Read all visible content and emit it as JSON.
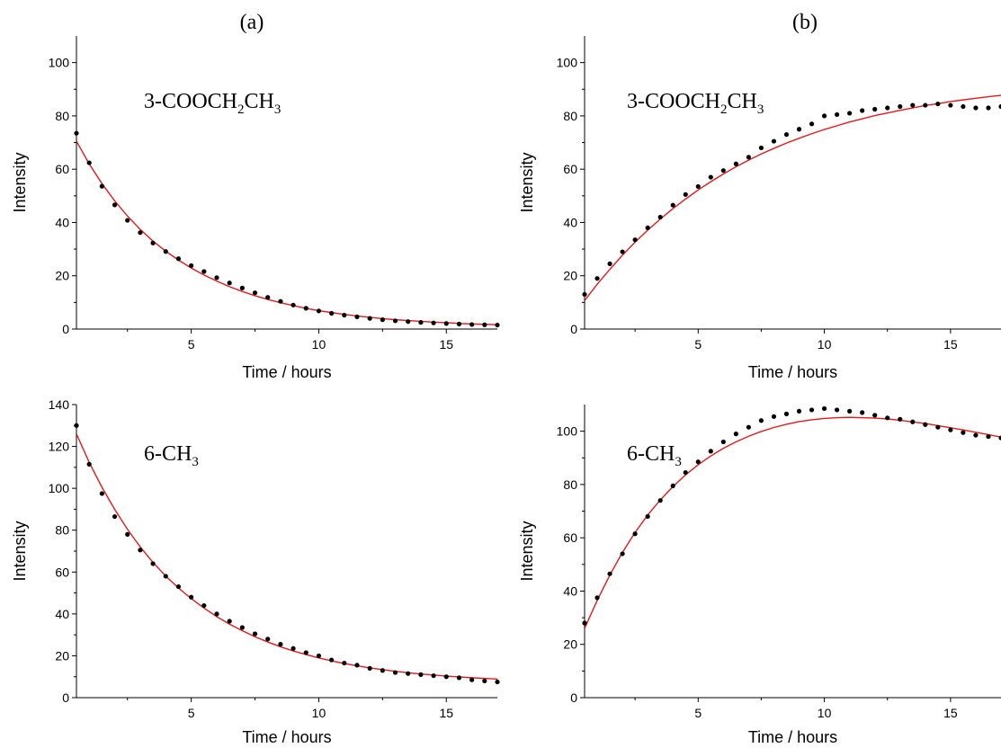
{
  "panel_labels": {
    "a": "(a)",
    "b": "(b)"
  },
  "colors": {
    "fit_line": "#e31a1c",
    "points": "#000000",
    "axes": "#000000"
  },
  "chart_data": [
    {
      "type": "scatter",
      "id": "a-top",
      "annotation": {
        "base": "3-COOCH",
        "sub1": "2",
        "mid": "CH",
        "sub2": "3"
      },
      "xlabel": "Time / hours",
      "ylabel": "Intensity",
      "xlim": [
        0.5,
        17
      ],
      "ylim": [
        0,
        110
      ],
      "xticks": [
        5,
        10,
        15
      ],
      "yticks": [
        0,
        20,
        40,
        60,
        80,
        100
      ],
      "grid": false,
      "series": [
        {
          "kind": "points",
          "x": [
            0.5,
            1,
            1.5,
            2,
            2.5,
            3,
            3.5,
            4,
            4.5,
            5,
            5.5,
            6,
            6.5,
            7,
            7.5,
            8,
            8.5,
            9,
            9.5,
            10,
            10.5,
            11,
            11.5,
            12,
            12.5,
            13,
            13.5,
            14,
            14.5,
            15,
            15.5,
            16,
            16.5,
            17
          ],
          "y": [
            73.5,
            62.4,
            53.6,
            46.6,
            40.8,
            36.2,
            32.3,
            29.1,
            26.4,
            23.8,
            21.6,
            19.3,
            17.3,
            15.4,
            13.6,
            11.9,
            10.4,
            9.0,
            7.8,
            6.8,
            5.9,
            5.2,
            4.6,
            4.0,
            3.5,
            3.1,
            2.8,
            2.5,
            2.3,
            2.1,
            1.9,
            1.7,
            1.6,
            1.5
          ]
        },
        {
          "kind": "fit",
          "x": [
            0.5,
            1,
            1.5,
            2,
            2.5,
            3,
            3.5,
            4,
            4.5,
            5,
            5.5,
            6,
            6.5,
            7,
            7.5,
            8,
            8.5,
            9,
            9.5,
            10,
            10.5,
            11,
            11.5,
            12,
            12.5,
            13,
            13.5,
            14,
            14.5,
            15,
            15.5,
            16,
            16.5,
            17
          ],
          "y": [
            70.5,
            62.0,
            54.6,
            48.1,
            42.4,
            37.4,
            33.0,
            29.2,
            25.9,
            22.9,
            20.3,
            18.0,
            15.9,
            14.1,
            12.5,
            11.1,
            9.9,
            8.8,
            7.8,
            6.9,
            6.2,
            5.5,
            4.9,
            4.4,
            3.9,
            3.5,
            3.2,
            2.9,
            2.6,
            2.4,
            2.1,
            1.9,
            1.8,
            1.6
          ]
        }
      ]
    },
    {
      "type": "scatter",
      "id": "b-top",
      "annotation": {
        "base": "3-COOCH",
        "sub1": "2",
        "mid": "CH",
        "sub2": "3"
      },
      "xlabel": "Time / hours",
      "ylabel": "Intensity",
      "xlim": [
        0.5,
        17
      ],
      "ylim": [
        0,
        110
      ],
      "xticks": [
        5,
        10,
        15
      ],
      "yticks": [
        0,
        20,
        40,
        60,
        80,
        100
      ],
      "grid": false,
      "series": [
        {
          "kind": "points",
          "x": [
            0.5,
            1,
            1.5,
            2,
            2.5,
            3,
            3.5,
            4,
            4.5,
            5,
            5.5,
            6,
            6.5,
            7,
            7.5,
            8,
            8.5,
            9,
            9.5,
            10,
            10.5,
            11,
            11.5,
            12,
            12.5,
            13,
            13.5,
            14,
            14.5,
            15,
            15.5,
            16,
            16.5,
            17
          ],
          "y": [
            13,
            19,
            24.5,
            29,
            33.5,
            38,
            42,
            46.5,
            50.5,
            53.5,
            57,
            59.5,
            62,
            64.5,
            68,
            70.5,
            73,
            75,
            77,
            80,
            80.5,
            81,
            82,
            82.5,
            83,
            83.5,
            84,
            84,
            84.5,
            84,
            83.5,
            83,
            83,
            83.5
          ]
        },
        {
          "kind": "fit",
          "x": [
            0.5,
            1,
            1.5,
            2,
            2.5,
            3,
            3.5,
            4,
            4.5,
            5,
            5.5,
            6,
            6.5,
            7,
            7.5,
            8,
            8.5,
            9,
            9.5,
            10,
            10.5,
            11,
            11.5,
            12,
            12.5,
            13,
            13.5,
            14,
            14.5,
            15,
            15.5,
            16,
            16.5,
            17
          ],
          "y": [
            10.7,
            16.8,
            22.4,
            27.7,
            32.6,
            37.1,
            41.3,
            45.2,
            48.8,
            52.2,
            55.3,
            58.2,
            60.9,
            63.4,
            65.7,
            67.8,
            69.8,
            71.6,
            73.3,
            74.9,
            76.3,
            77.7,
            78.9,
            80.1,
            81.1,
            82.1,
            83.0,
            83.9,
            84.6,
            85.4,
            86.0,
            86.6,
            87.2,
            87.7
          ]
        }
      ]
    },
    {
      "type": "scatter",
      "id": "a-bottom",
      "annotation": {
        "base": "6-CH",
        "sub1": "3",
        "mid": "",
        "sub2": ""
      },
      "xlabel": "Time / hours",
      "ylabel": "Intensity",
      "xlim": [
        0.5,
        17
      ],
      "ylim": [
        0,
        140
      ],
      "xticks": [
        5,
        10,
        15
      ],
      "yticks": [
        0,
        20,
        40,
        60,
        80,
        100,
        120,
        140
      ],
      "grid": false,
      "series": [
        {
          "kind": "points",
          "x": [
            0.5,
            1,
            1.5,
            2,
            2.5,
            3,
            3.5,
            4,
            4.5,
            5,
            5.5,
            6,
            6.5,
            7,
            7.5,
            8,
            8.5,
            9,
            9.5,
            10,
            10.5,
            11,
            11.5,
            12,
            12.5,
            13,
            13.5,
            14,
            14.5,
            15,
            15.5,
            16,
            16.5,
            17
          ],
          "y": [
            130,
            111.5,
            97.5,
            86.5,
            78,
            70.5,
            64,
            58,
            53,
            48,
            44,
            40,
            36.5,
            33.5,
            30.5,
            28,
            25.5,
            23.5,
            21.5,
            20,
            18,
            16.5,
            15.5,
            14,
            13,
            12,
            11.5,
            11,
            10.5,
            10,
            9.5,
            8.5,
            8,
            7.5
          ]
        },
        {
          "kind": "fit",
          "x": [
            0.5,
            1,
            1.5,
            2,
            2.5,
            3,
            3.5,
            4,
            4.5,
            5,
            5.5,
            6,
            6.5,
            7,
            7.5,
            8,
            8.5,
            9,
            9.5,
            10,
            10.5,
            11,
            11.5,
            12,
            12.5,
            13,
            13.5,
            14,
            14.5,
            15,
            15.5,
            16,
            16.5,
            17
          ],
          "y": [
            126,
            112.4,
            100.5,
            89.9,
            80.4,
            72.0,
            64.6,
            58.1,
            52.4,
            47.3,
            42.8,
            38.7,
            35.1,
            32.0,
            29.1,
            26.6,
            24.3,
            22.3,
            20.6,
            19.0,
            17.6,
            16.3,
            15.2,
            14.2,
            13.4,
            12.6,
            11.9,
            11.3,
            10.8,
            10.3,
            9.9,
            9.5,
            9.2,
            8.9
          ]
        }
      ]
    },
    {
      "type": "scatter",
      "id": "b-bottom",
      "annotation": {
        "base": "6-CH",
        "sub1": "3",
        "mid": "",
        "sub2": ""
      },
      "xlabel": "Time / hours",
      "ylabel": "Intensity",
      "xlim": [
        0.5,
        17
      ],
      "ylim": [
        0,
        110
      ],
      "xticks": [
        5,
        10,
        15
      ],
      "yticks": [
        0,
        20,
        40,
        60,
        80,
        100
      ],
      "grid": false,
      "series": [
        {
          "kind": "points",
          "x": [
            0.5,
            1,
            1.5,
            2,
            2.5,
            3,
            3.5,
            4,
            4.5,
            5,
            5.5,
            6,
            6.5,
            7,
            7.5,
            8,
            8.5,
            9,
            9.5,
            10,
            10.5,
            11,
            11.5,
            12,
            12.5,
            13,
            13.5,
            14,
            14.5,
            15,
            15.5,
            16,
            16.5,
            17
          ],
          "y": [
            28,
            37.5,
            46.5,
            54,
            61.5,
            68,
            74,
            79.5,
            84.5,
            88.5,
            92.5,
            96,
            99,
            101.5,
            104,
            105.5,
            106.5,
            107.5,
            108,
            108.5,
            108,
            107.5,
            107,
            106,
            105,
            104.5,
            103.5,
            102.5,
            101.5,
            100.5,
            99.5,
            98.5,
            98,
            97.5
          ]
        },
        {
          "kind": "fit",
          "x": [
            0.5,
            1,
            1.5,
            2,
            2.5,
            3,
            3.5,
            4,
            4.5,
            5,
            5.5,
            6,
            6.5,
            7,
            7.5,
            8,
            8.5,
            9,
            9.5,
            10,
            10.5,
            11,
            11.5,
            12,
            12.5,
            13,
            13.5,
            14,
            14.5,
            15,
            15.5,
            16,
            16.5,
            17
          ],
          "y": [
            26,
            36.5,
            46,
            54.5,
            62,
            68.5,
            74.2,
            79.2,
            83.6,
            87.4,
            90.7,
            93.6,
            96,
            98.1,
            99.9,
            101.4,
            102.6,
            103.6,
            104.3,
            104.8,
            105.1,
            105.2,
            105.1,
            104.9,
            104.6,
            104.1,
            103.5,
            102.9,
            102.1,
            101.3,
            100.5,
            99.6,
            98.7,
            97.8
          ]
        }
      ]
    }
  ]
}
